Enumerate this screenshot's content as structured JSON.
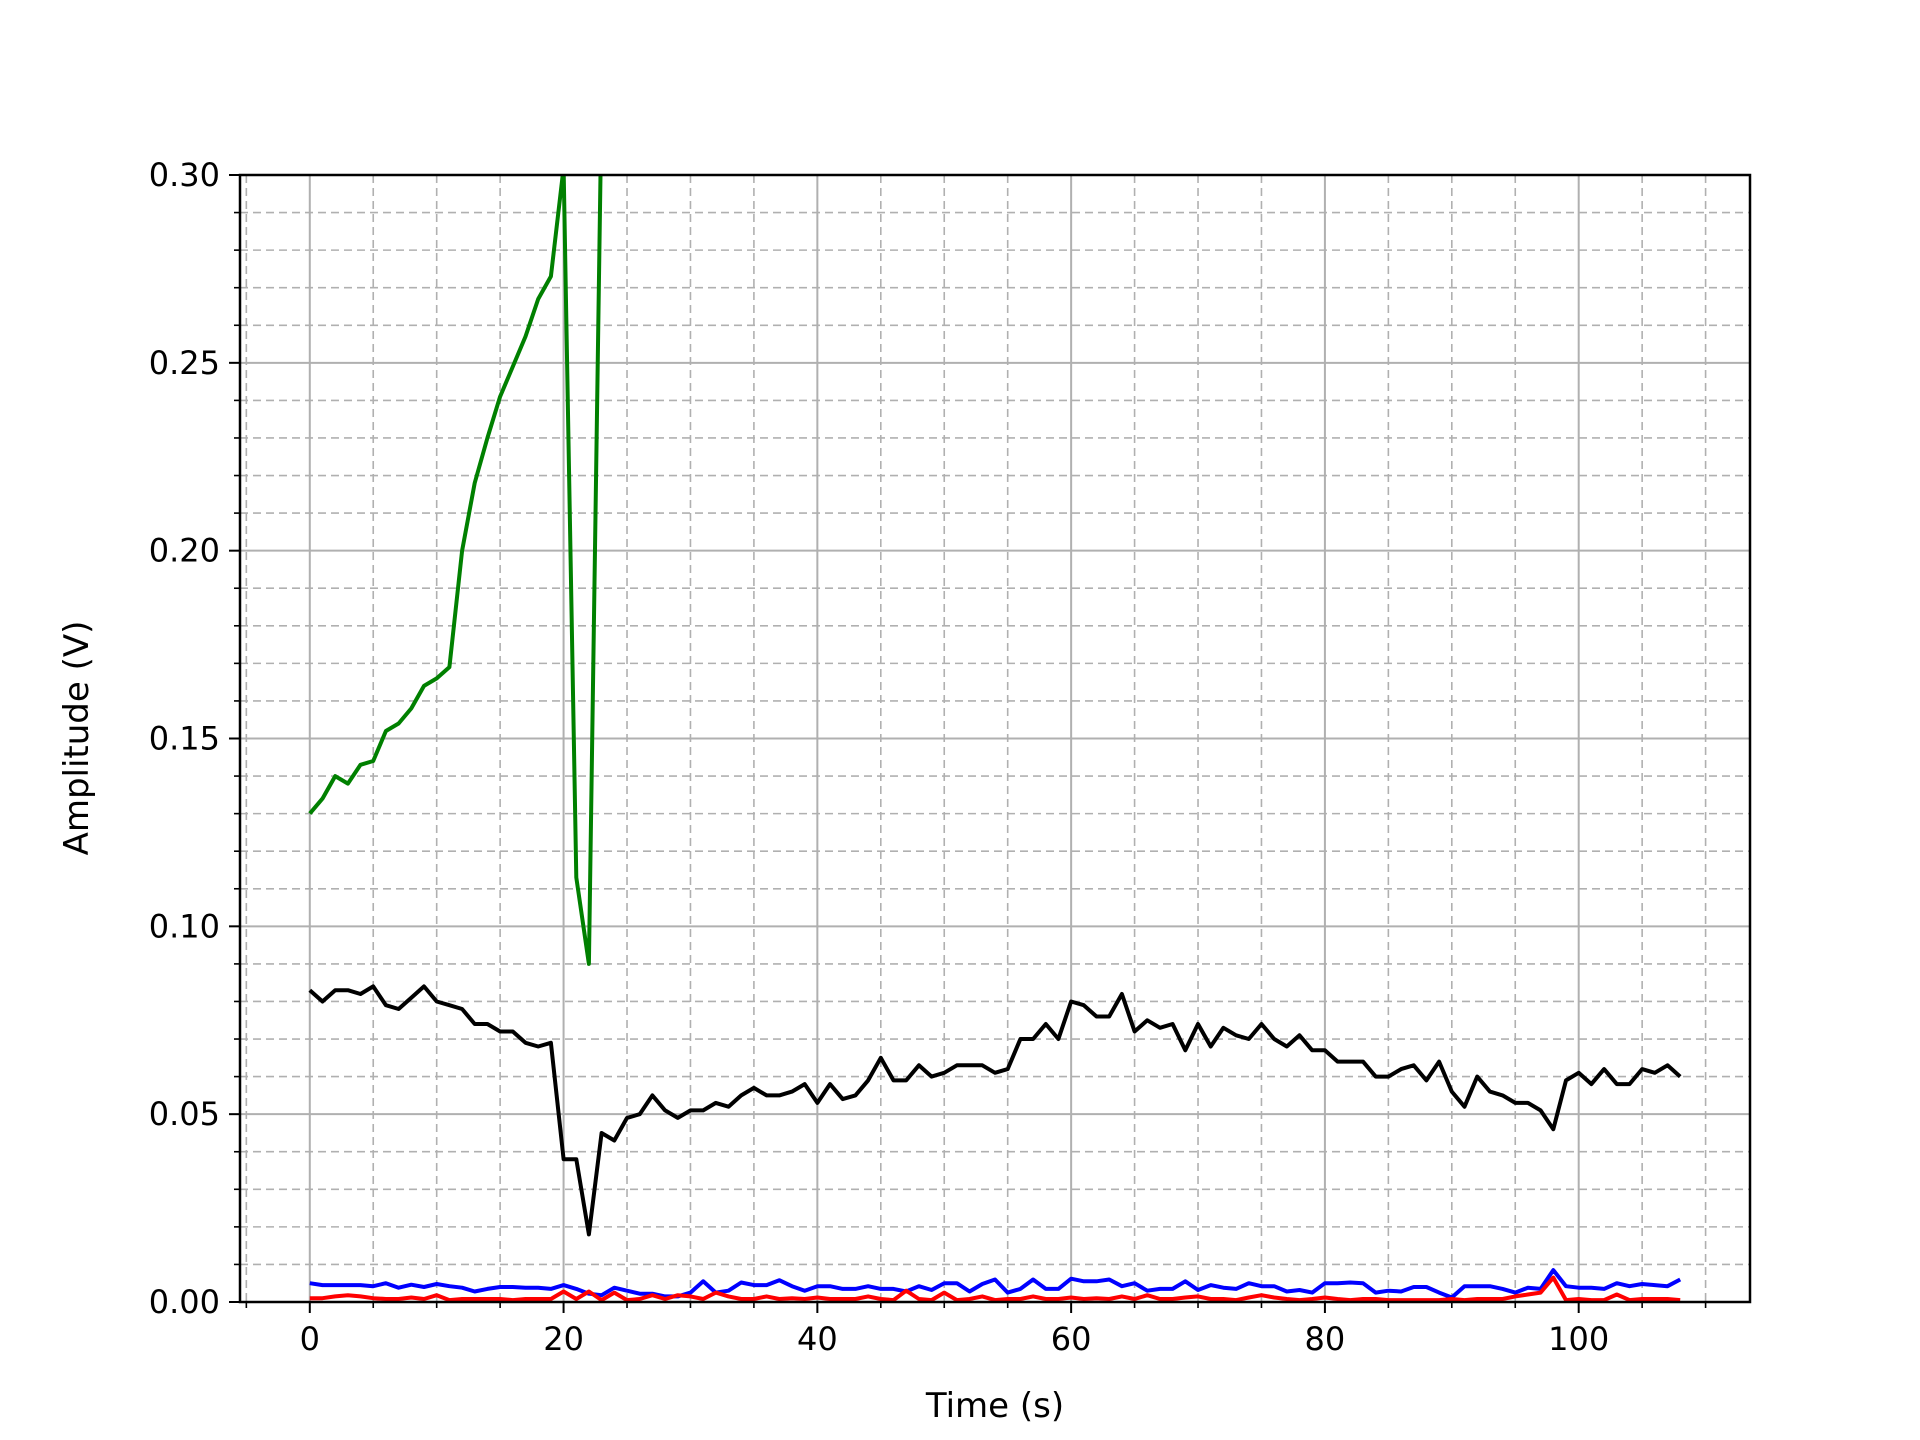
{
  "chart_data": {
    "type": "line",
    "title": "",
    "xlabel": "Time (s)",
    "ylabel": "Amplitude (V)",
    "xlim": [
      -5.5,
      113.5
    ],
    "ylim": [
      0,
      0.3
    ],
    "x_ticks": [
      0,
      20,
      40,
      60,
      80,
      100
    ],
    "x_tick_labels": [
      "0",
      "20",
      "40",
      "60",
      "80",
      "100"
    ],
    "x_minor_ticks": [
      -5,
      5,
      10,
      15,
      25,
      30,
      35,
      45,
      50,
      55,
      65,
      70,
      75,
      85,
      90,
      95,
      105,
      110
    ],
    "y_ticks": [
      0,
      0.05,
      0.1,
      0.15,
      0.2,
      0.25,
      0.3
    ],
    "y_tick_labels": [
      "0.00",
      "0.05",
      "0.10",
      "0.15",
      "0.20",
      "0.25",
      "0.30"
    ],
    "y_minor_ticks": [
      0.01,
      0.02,
      0.03,
      0.04,
      0.06,
      0.07,
      0.08,
      0.09,
      0.11,
      0.12,
      0.13,
      0.14,
      0.16,
      0.17,
      0.18,
      0.19,
      0.21,
      0.22,
      0.23,
      0.24,
      0.26,
      0.27,
      0.28,
      0.29
    ],
    "grid": true,
    "legend": "none",
    "series": [
      {
        "color": "#008000",
        "x": [
          0,
          1,
          2,
          3,
          4,
          5,
          6,
          7,
          8,
          9,
          10,
          11,
          12,
          13,
          14,
          15,
          16,
          17,
          18,
          19,
          20,
          21,
          22,
          23
        ],
        "y": [
          0.13,
          0.134,
          0.14,
          0.138,
          0.143,
          0.144,
          0.152,
          0.154,
          0.158,
          0.164,
          0.166,
          0.169,
          0.2,
          0.218,
          0.23,
          0.241,
          0.249,
          0.257,
          0.267,
          0.273,
          0.302,
          0.113,
          0.09,
          0.32
        ]
      },
      {
        "color": "#000000",
        "x": [
          0,
          1,
          2,
          3,
          4,
          5,
          6,
          7,
          8,
          9,
          10,
          11,
          12,
          13,
          14,
          15,
          16,
          17,
          18,
          19,
          20,
          21,
          22,
          23,
          24,
          25,
          26,
          27,
          28,
          29,
          30,
          31,
          32,
          33,
          34,
          35,
          36,
          37,
          38,
          39,
          40,
          41,
          42,
          43,
          44,
          45,
          46,
          47,
          48,
          49,
          50,
          51,
          52,
          53,
          54,
          55,
          56,
          57,
          58,
          59,
          60,
          61,
          62,
          63,
          64,
          65,
          66,
          67,
          68,
          69,
          70,
          71,
          72,
          73,
          74,
          75,
          76,
          77,
          78,
          79,
          80,
          81,
          82,
          83,
          84,
          85,
          86,
          87,
          88,
          89,
          90,
          91,
          92,
          93,
          94,
          95,
          96,
          97,
          98,
          99,
          100,
          101,
          102,
          103,
          104,
          105,
          106,
          107,
          108
        ],
        "y": [
          0.083,
          0.08,
          0.083,
          0.083,
          0.082,
          0.084,
          0.079,
          0.078,
          0.081,
          0.084,
          0.08,
          0.079,
          0.078,
          0.074,
          0.074,
          0.072,
          0.072,
          0.069,
          0.068,
          0.069,
          0.038,
          0.038,
          0.018,
          0.045,
          0.043,
          0.049,
          0.05,
          0.055,
          0.051,
          0.049,
          0.051,
          0.051,
          0.053,
          0.052,
          0.055,
          0.057,
          0.055,
          0.055,
          0.056,
          0.058,
          0.053,
          0.058,
          0.054,
          0.055,
          0.059,
          0.065,
          0.059,
          0.059,
          0.063,
          0.06,
          0.061,
          0.063,
          0.063,
          0.063,
          0.061,
          0.062,
          0.07,
          0.07,
          0.074,
          0.07,
          0.08,
          0.079,
          0.076,
          0.076,
          0.082,
          0.072,
          0.075,
          0.073,
          0.074,
          0.067,
          0.074,
          0.068,
          0.073,
          0.071,
          0.07,
          0.074,
          0.07,
          0.068,
          0.071,
          0.067,
          0.067,
          0.064,
          0.064,
          0.064,
          0.06,
          0.06,
          0.062,
          0.063,
          0.059,
          0.064,
          0.056,
          0.052,
          0.06,
          0.056,
          0.055,
          0.053,
          0.053,
          0.051,
          0.046,
          0.059,
          0.061,
          0.058,
          0.062,
          0.058,
          0.058,
          0.062,
          0.061,
          0.063,
          0.06
        ]
      },
      {
        "color": "#0000ff",
        "x": [
          0,
          1,
          2,
          3,
          4,
          5,
          6,
          7,
          8,
          9,
          10,
          11,
          12,
          13,
          14,
          15,
          16,
          17,
          18,
          19,
          20,
          21,
          22,
          23,
          24,
          25,
          26,
          27,
          28,
          29,
          30,
          31,
          32,
          33,
          34,
          35,
          36,
          37,
          38,
          39,
          40,
          41,
          42,
          43,
          44,
          45,
          46,
          47,
          48,
          49,
          50,
          51,
          52,
          53,
          54,
          55,
          56,
          57,
          58,
          59,
          60,
          61,
          62,
          63,
          64,
          65,
          66,
          67,
          68,
          69,
          70,
          71,
          72,
          73,
          74,
          75,
          76,
          77,
          78,
          79,
          80,
          81,
          82,
          83,
          84,
          85,
          86,
          87,
          88,
          89,
          90,
          91,
          92,
          93,
          94,
          95,
          96,
          97,
          98,
          99,
          100,
          101,
          102,
          103,
          104,
          105,
          106,
          107,
          108
        ],
        "y": [
          0.005,
          0.0045,
          0.0045,
          0.0045,
          0.0045,
          0.0042,
          0.005,
          0.0038,
          0.0046,
          0.004,
          0.0048,
          0.0042,
          0.0038,
          0.0028,
          0.0035,
          0.004,
          0.004,
          0.0038,
          0.0038,
          0.0035,
          0.0045,
          0.0035,
          0.0022,
          0.0018,
          0.0038,
          0.003,
          0.0022,
          0.0022,
          0.0015,
          0.0015,
          0.0025,
          0.0055,
          0.0025,
          0.003,
          0.0052,
          0.0045,
          0.0045,
          0.0058,
          0.0042,
          0.003,
          0.0042,
          0.0042,
          0.0035,
          0.0035,
          0.0042,
          0.0035,
          0.0035,
          0.0028,
          0.0042,
          0.0032,
          0.005,
          0.005,
          0.0028,
          0.0048,
          0.006,
          0.0025,
          0.0035,
          0.006,
          0.0035,
          0.0035,
          0.0062,
          0.0055,
          0.0055,
          0.006,
          0.0042,
          0.005,
          0.003,
          0.0035,
          0.0035,
          0.0055,
          0.0032,
          0.0045,
          0.0038,
          0.0035,
          0.005,
          0.0042,
          0.0042,
          0.0028,
          0.0032,
          0.0025,
          0.005,
          0.005,
          0.0052,
          0.005,
          0.0025,
          0.003,
          0.0028,
          0.004,
          0.004,
          0.0025,
          0.0012,
          0.0042,
          0.0042,
          0.0042,
          0.0035,
          0.0025,
          0.0038,
          0.0035,
          0.0085,
          0.0042,
          0.0038,
          0.0038,
          0.0035,
          0.005,
          0.0042,
          0.0048,
          0.0045,
          0.0042,
          0.006
        ]
      },
      {
        "color": "#ff0000",
        "x": [
          0,
          1,
          2,
          3,
          4,
          5,
          6,
          7,
          8,
          9,
          10,
          11,
          12,
          13,
          14,
          15,
          16,
          17,
          18,
          19,
          20,
          21,
          22,
          23,
          24,
          25,
          26,
          27,
          28,
          29,
          30,
          31,
          32,
          33,
          34,
          35,
          36,
          37,
          38,
          39,
          40,
          41,
          42,
          43,
          44,
          45,
          46,
          47,
          48,
          49,
          50,
          51,
          52,
          53,
          54,
          55,
          56,
          57,
          58,
          59,
          60,
          61,
          62,
          63,
          64,
          65,
          66,
          67,
          68,
          69,
          70,
          71,
          72,
          73,
          74,
          75,
          76,
          77,
          78,
          79,
          80,
          81,
          82,
          83,
          84,
          85,
          86,
          87,
          88,
          89,
          90,
          91,
          92,
          93,
          94,
          95,
          96,
          97,
          98,
          99,
          100,
          101,
          102,
          103,
          104,
          105,
          106,
          107,
          108
        ],
        "y": [
          0.001,
          0.001,
          0.0015,
          0.0018,
          0.0015,
          0.001,
          0.0008,
          0.0008,
          0.0012,
          0.0008,
          0.0018,
          0.0005,
          0.0008,
          0.0008,
          0.0008,
          0.0008,
          0.0005,
          0.0008,
          0.0008,
          0.0008,
          0.0028,
          0.0008,
          0.0028,
          0.0005,
          0.0025,
          0.0005,
          0.0008,
          0.0018,
          0.0008,
          0.0018,
          0.0015,
          0.0008,
          0.0025,
          0.0015,
          0.0008,
          0.0008,
          0.0015,
          0.0008,
          0.001,
          0.0008,
          0.0012,
          0.0008,
          0.0008,
          0.0008,
          0.0015,
          0.0008,
          0.0005,
          0.003,
          0.0008,
          0.0005,
          0.0025,
          0.0005,
          0.0008,
          0.0015,
          0.0005,
          0.0008,
          0.0008,
          0.0015,
          0.0008,
          0.0008,
          0.0012,
          0.0008,
          0.001,
          0.0008,
          0.0015,
          0.0008,
          0.0018,
          0.0008,
          0.0008,
          0.0012,
          0.0015,
          0.0008,
          0.0008,
          0.0005,
          0.0012,
          0.0018,
          0.0012,
          0.0008,
          0.0005,
          0.0008,
          0.0012,
          0.0008,
          0.0005,
          0.0008,
          0.0008,
          0.0005,
          0.0005,
          0.0005,
          0.0005,
          0.0005,
          0.0008,
          0.0005,
          0.0008,
          0.0008,
          0.0008,
          0.0015,
          0.002,
          0.0025,
          0.0065,
          0.0005,
          0.0008,
          0.0005,
          0.0005,
          0.002,
          0.0005,
          0.0008,
          0.0008,
          0.0008,
          0.0005
        ]
      }
    ]
  }
}
